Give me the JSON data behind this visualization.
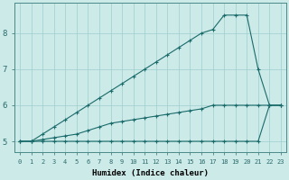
{
  "xlabel": "Humidex (Indice chaleur)",
  "bg_color": "#cceae8",
  "line_color": "#1a6b6b",
  "grid_color": "#9ecece",
  "x_ticks": [
    0,
    1,
    2,
    3,
    4,
    5,
    6,
    7,
    8,
    9,
    10,
    11,
    12,
    13,
    14,
    15,
    16,
    17,
    18,
    19,
    20,
    21,
    22,
    23
  ],
  "y_ticks": [
    5,
    6,
    7,
    8
  ],
  "xlim": [
    -0.5,
    23.5
  ],
  "ylim": [
    4.7,
    8.85
  ],
  "line_min_x": [
    0,
    1,
    2,
    3,
    4,
    5,
    6,
    7,
    8,
    9,
    10,
    11,
    12,
    13,
    14,
    15,
    16,
    17,
    18,
    19,
    20,
    21,
    22,
    23
  ],
  "line_min_y": [
    5.0,
    5.0,
    5.0,
    5.0,
    5.0,
    5.0,
    5.0,
    5.0,
    5.0,
    5.0,
    5.0,
    5.0,
    5.0,
    5.0,
    5.0,
    5.0,
    5.0,
    5.0,
    5.0,
    5.0,
    5.0,
    5.0,
    6.0,
    6.0
  ],
  "line_mid_x": [
    0,
    1,
    2,
    3,
    4,
    5,
    6,
    7,
    8,
    9,
    10,
    11,
    12,
    13,
    14,
    15,
    16,
    17,
    18,
    19,
    20,
    21,
    22,
    23
  ],
  "line_mid_y": [
    5.0,
    5.0,
    5.05,
    5.1,
    5.15,
    5.2,
    5.3,
    5.4,
    5.5,
    5.55,
    5.6,
    5.65,
    5.7,
    5.75,
    5.8,
    5.85,
    5.9,
    6.0,
    6.0,
    6.0,
    6.0,
    6.0,
    6.0,
    6.0
  ],
  "line_max_x": [
    0,
    1,
    2,
    3,
    4,
    5,
    6,
    7,
    8,
    9,
    10,
    11,
    12,
    13,
    14,
    15,
    16,
    17,
    18,
    19,
    20,
    21,
    22,
    23
  ],
  "line_max_y": [
    5.0,
    5.0,
    5.2,
    5.4,
    5.6,
    5.8,
    6.0,
    6.2,
    6.4,
    6.6,
    6.8,
    7.0,
    7.2,
    7.4,
    7.6,
    7.8,
    8.0,
    8.1,
    8.5,
    8.5,
    8.5,
    7.0,
    6.0,
    6.0
  ]
}
